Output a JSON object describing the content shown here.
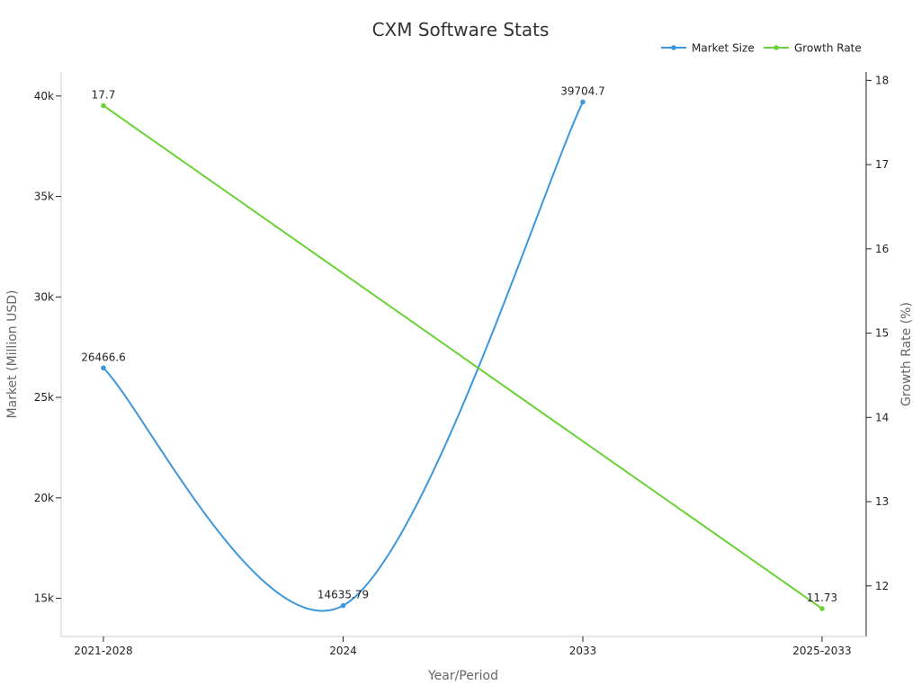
{
  "chart_data": {
    "type": "line",
    "title": "CXM Software Stats",
    "xlabel": "Year/Period",
    "ylabel": "Market (Million USD)",
    "y2label": "Growth Rate (%)",
    "categories": [
      "2021-2028",
      "2024",
      "2033",
      "2025-2033"
    ],
    "series": [
      {
        "name": "Market Size",
        "axis": "left",
        "color": "#3a97dd",
        "smooth": true,
        "values": [
          26466.6,
          14635.79,
          39704.7,
          null
        ],
        "labels": [
          "26466.6",
          "14635.79",
          "39704.7",
          ""
        ]
      },
      {
        "name": "Growth Rate",
        "axis": "right",
        "color": "#6ad136",
        "smooth": false,
        "values": [
          17.7,
          null,
          null,
          11.73
        ],
        "labels": [
          "17.7",
          "",
          "",
          "11.73"
        ]
      }
    ],
    "ylim": [
      13100,
      41200
    ],
    "y2lim": [
      11.4,
      18.1
    ],
    "yticks": [
      15000,
      20000,
      25000,
      30000,
      35000,
      40000
    ],
    "ytick_labels": [
      "15k",
      "20k",
      "25k",
      "30k",
      "35k",
      "40k"
    ],
    "y2ticks": [
      12,
      13,
      14,
      15,
      16,
      17,
      18
    ],
    "y2tick_labels": [
      "12",
      "13",
      "14",
      "15",
      "16",
      "17",
      "18"
    ],
    "grid": false,
    "legend": "top-right"
  }
}
